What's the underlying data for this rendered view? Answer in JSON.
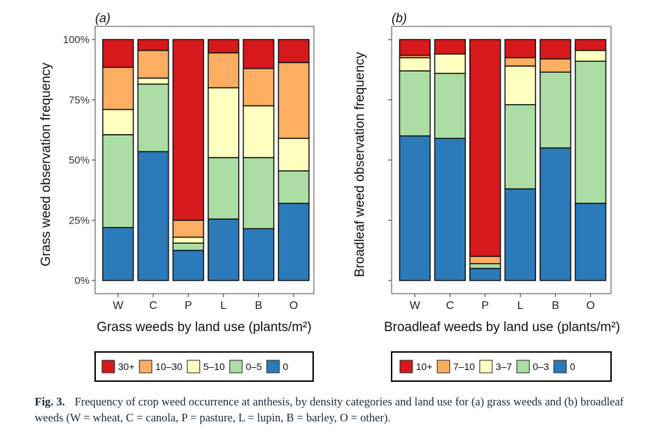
{
  "chart_data": [
    {
      "type": "bar",
      "stacked": true,
      "panel": "(a)",
      "xlabel": "Grass weeds by land use (plants/m²)",
      "ylabel": "Grass weed observation frequency",
      "yticks": [
        "0%",
        "25%",
        "50%",
        "75%",
        "100%"
      ],
      "ylim": [
        0,
        100
      ],
      "categories": [
        "W",
        "C",
        "P",
        "L",
        "B",
        "O"
      ],
      "series": [
        {
          "name": "0",
          "color": "#2b7bba",
          "values": [
            22,
            53.5,
            12.5,
            25.5,
            21.5,
            32
          ]
        },
        {
          "name": "0–5",
          "color": "#abdda4",
          "values": [
            38.5,
            28,
            3,
            25.5,
            29.5,
            13.5
          ]
        },
        {
          "name": "5–10",
          "color": "#ffffbf",
          "values": [
            10.5,
            2.5,
            2.5,
            29,
            21.5,
            13.5
          ]
        },
        {
          "name": "10–30",
          "color": "#fdae61",
          "values": [
            17.5,
            11.5,
            7,
            14.5,
            15.5,
            31.5
          ]
        },
        {
          "name": "30+",
          "color": "#d7191c",
          "values": [
            11.5,
            4.5,
            75,
            5.5,
            12,
            9.5
          ]
        }
      ],
      "legend_order": [
        "30+",
        "10–30",
        "5–10",
        "0–5",
        "0"
      ],
      "grid": false,
      "legend_position": "bottom"
    },
    {
      "type": "bar",
      "stacked": true,
      "panel": "(b)",
      "xlabel": "Broadleaf weeds by land use (plants/m²)",
      "ylabel": "Broadleaf weed observation frequency",
      "categories": [
        "W",
        "C",
        "P",
        "L",
        "B",
        "O"
      ],
      "ylim": [
        0,
        100
      ],
      "series": [
        {
          "name": "0",
          "color": "#2b7bba",
          "values": [
            60,
            59,
            5,
            38,
            55,
            32
          ]
        },
        {
          "name": "0–3",
          "color": "#abdda4",
          "values": [
            27,
            27,
            2,
            35,
            31.5,
            59
          ]
        },
        {
          "name": "3–7",
          "color": "#ffffbf",
          "values": [
            5.5,
            8,
            0,
            16,
            0,
            4.5
          ]
        },
        {
          "name": "7–10",
          "color": "#fdae61",
          "values": [
            1,
            0,
            3,
            3.5,
            5.5,
            0
          ]
        },
        {
          "name": "10+",
          "color": "#d7191c",
          "values": [
            6.5,
            6,
            90,
            7.5,
            8,
            4.5
          ]
        }
      ],
      "legend_order": [
        "10+",
        "7–10",
        "3–7",
        "0–3",
        "0"
      ],
      "grid": false,
      "legend_position": "bottom"
    }
  ],
  "caption": {
    "number": "Fig. 3.",
    "text": "Frequency of crop weed occurrence at anthesis, by density categories and land use for (a) grass weeds and (b) broadleaf weeds (W = wheat, C = canola, P = pasture, L = lupin, B = barley, O = other)."
  }
}
